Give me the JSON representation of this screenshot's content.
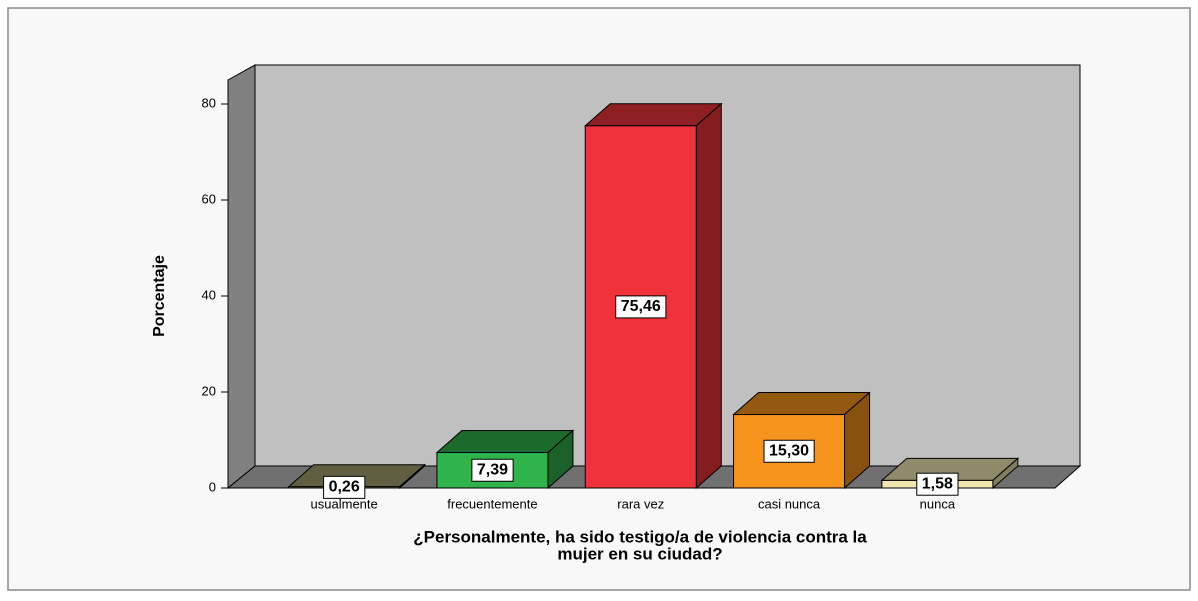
{
  "chart_data": {
    "type": "bar3d",
    "categories": [
      "usualmente",
      "frecuentemente",
      "rara vez",
      "casi nunca",
      "nunca"
    ],
    "values": [
      0.26,
      7.39,
      75.46,
      15.3,
      1.58
    ],
    "value_labels": [
      "0,26",
      "7,39",
      "75,46",
      "15,30",
      "1,58"
    ],
    "colors": [
      "#a39d6e",
      "#2fb34a",
      "#f0333a",
      "#f7941d",
      "#efe6b0"
    ],
    "ylabel": "Porcentaje",
    "xlabel": [
      "¿Personalmente, ha sido testigo/a de violencia contra la",
      "mujer en su ciudad?"
    ],
    "ylim": [
      0,
      85
    ],
    "yticks": [
      0,
      20,
      40,
      60,
      80
    ]
  }
}
